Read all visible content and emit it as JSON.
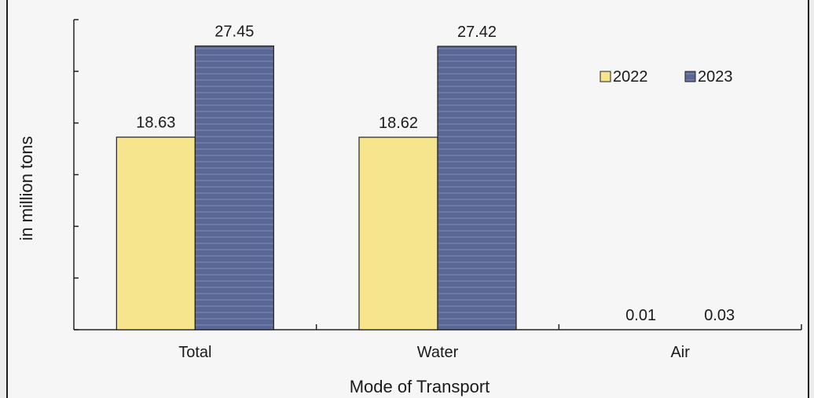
{
  "chart_data": {
    "type": "bar",
    "categories": [
      "Total",
      "Water",
      "Air"
    ],
    "series": [
      {
        "name": "2022",
        "values": [
          18.63,
          18.62,
          0.01
        ],
        "color": "#f6e58c"
      },
      {
        "name": "2023",
        "values": [
          27.45,
          27.42,
          0.03
        ],
        "color": "#5a6795"
      }
    ],
    "data_labels": [
      [
        "18.63",
        "18.62",
        "0.01"
      ],
      [
        "27.45",
        "27.42",
        "0.03"
      ]
    ],
    "xlabel": "Mode of Transport",
    "ylabel": "in million tons",
    "ylim": [
      0,
      30
    ],
    "y_tick_labels_shown": false,
    "grid": false,
    "legend_position": "top-right"
  }
}
